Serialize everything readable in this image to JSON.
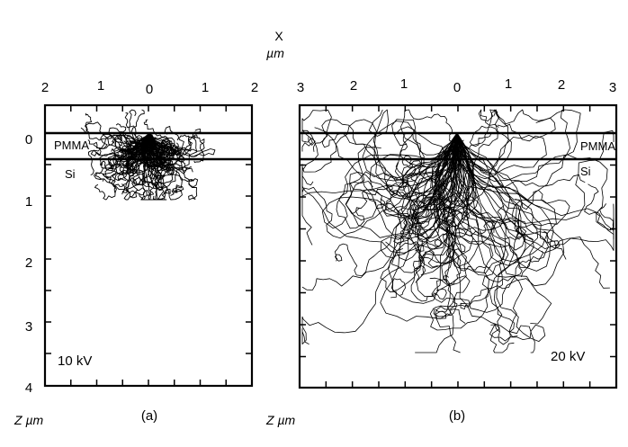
{
  "figure": {
    "x_axis_title_line1": "X",
    "x_axis_title_line2": "µm",
    "z_axis_title": "Z µm",
    "panels": [
      {
        "id": "a",
        "label": "(a)",
        "energy": "10 kV",
        "layer_top": "PMMA",
        "layer_bottom": "Si",
        "x_ticks": [
          "2",
          "1",
          "0",
          "1",
          "2"
        ],
        "z_ticks": [
          "0",
          "1",
          "2",
          "3",
          "4"
        ]
      },
      {
        "id": "b",
        "label": "(b)",
        "energy": "20 kV",
        "layer_top": "PMMA",
        "layer_bottom": "Si",
        "x_ticks": [
          "3",
          "2",
          "1",
          "0",
          "1",
          "2",
          "3"
        ]
      }
    ]
  }
}
